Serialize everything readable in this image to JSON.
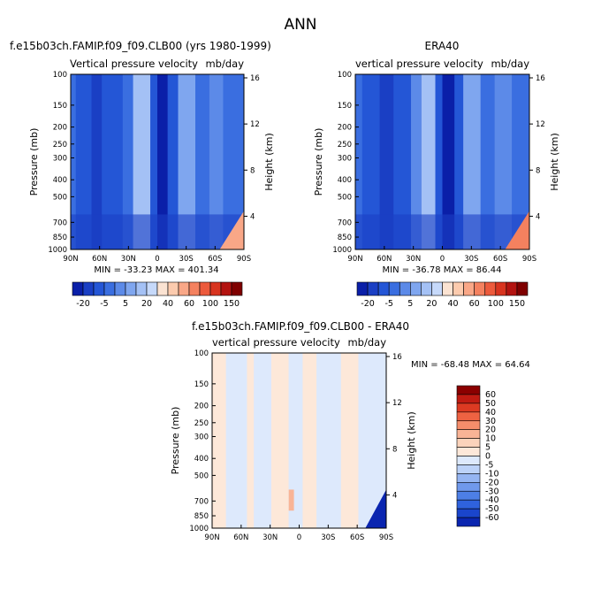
{
  "page_title": "ANN",
  "colors": {
    "blue_scale": [
      "#00008b",
      "#0a1fa8",
      "#1a3fc4",
      "#2456d6",
      "#3a6ee0",
      "#5c8ae8",
      "#7fa6ef",
      "#a4c1f5",
      "#c6d9fa"
    ],
    "red_scale": [
      "#fbe3d2",
      "#fccbae",
      "#f9a787",
      "#f4815f",
      "#ec5a3c",
      "#d8341f",
      "#b31310",
      "#7f0000"
    ],
    "diff_scale": [
      "#00008b",
      "#0a25b0",
      "#1a45cc",
      "#2f62dd",
      "#4d7fe6",
      "#7099ec",
      "#95b5f2",
      "#bcd2f8",
      "#dde9fc",
      "#fde8d9",
      "#fbd3bb",
      "#f9b496",
      "#f58d6b",
      "#ee6242",
      "#dc3a22",
      "#c01b12",
      "#8b0000"
    ]
  },
  "chart_data": [
    {
      "type": "heatmap",
      "id": "model",
      "title": "f.e15b03ch.FAMIP.f09_f09.CLB00 (yrs 1980-1999)",
      "subtitle_left": "Vertical pressure velocity",
      "subtitle_right": "mb/day",
      "ylabel": "Pressure (mb)",
      "ylabel_right": "Height (km)",
      "x_ticks": [
        "90N",
        "60N",
        "30N",
        "0",
        "30S",
        "60S",
        "90S"
      ],
      "x_range": [
        90,
        -90
      ],
      "y_ticks": [
        100,
        150,
        200,
        250,
        300,
        400,
        500,
        700,
        850,
        1000
      ],
      "y_range": [
        100,
        1000
      ],
      "y_scale": "log",
      "right_ticks": [
        16,
        12,
        8,
        4
      ],
      "stats_text": "MIN = -33.23   MAX = 401.34",
      "min": -33.23,
      "max": 401.34,
      "colorbar_levels": [
        -20,
        -5,
        5,
        20,
        40,
        60,
        100,
        150
      ]
    },
    {
      "type": "heatmap",
      "id": "obs",
      "title": "ERA40",
      "subtitle_left": "vertical pressure velocity",
      "subtitle_right": "mb/day",
      "ylabel": "Pressure (mb)",
      "ylabel_right": "Height (km)",
      "x_ticks": [
        "90N",
        "60N",
        "30N",
        "0",
        "30S",
        "60S",
        "90S"
      ],
      "x_range": [
        90,
        -90
      ],
      "y_ticks": [
        100,
        150,
        200,
        250,
        300,
        400,
        500,
        700,
        850,
        1000
      ],
      "y_range": [
        100,
        1000
      ],
      "y_scale": "log",
      "right_ticks": [
        16,
        12,
        8,
        4
      ],
      "stats_text": "MIN = -36.78   MAX =  86.44",
      "min": -36.78,
      "max": 86.44,
      "colorbar_levels": [
        -20,
        -5,
        5,
        20,
        40,
        60,
        100,
        150
      ]
    },
    {
      "type": "heatmap",
      "id": "diff",
      "title": "f.e15b03ch.FAMIP.f09_f09.CLB00 - ERA40",
      "subtitle_left": "vertical pressure velocity",
      "subtitle_right": "mb/day",
      "ylabel": "Pressure (mb)",
      "ylabel_right": "Height (km)",
      "x_ticks": [
        "90N",
        "60N",
        "30N",
        "0",
        "30S",
        "60S",
        "90S"
      ],
      "x_range": [
        90,
        -90
      ],
      "y_ticks": [
        100,
        150,
        200,
        250,
        300,
        400,
        500,
        700,
        850,
        1000
      ],
      "y_range": [
        100,
        1000
      ],
      "y_scale": "log",
      "right_ticks": [
        16,
        12,
        8,
        4
      ],
      "stats_text": "MIN = -68.48   MAX =  64.64",
      "min": -68.48,
      "max": 64.64,
      "colorbar_levels": [
        60,
        50,
        40,
        30,
        20,
        10,
        5,
        0,
        -5,
        -10,
        -20,
        -30,
        -40,
        -50,
        -60
      ]
    }
  ]
}
